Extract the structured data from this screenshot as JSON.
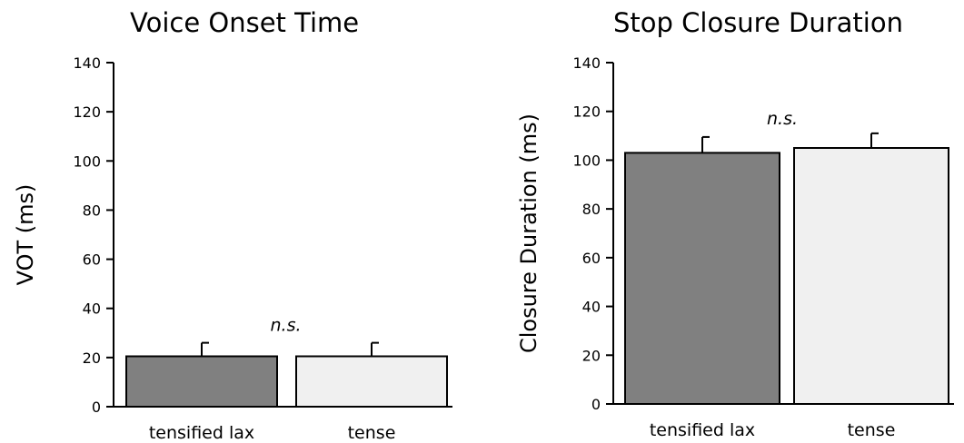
{
  "chart_data": [
    {
      "type": "bar",
      "title": "Voice Onset Time",
      "xlabel": "",
      "ylabel": "VOT (ms)",
      "ylim": [
        0,
        140
      ],
      "yticks": [
        0,
        20,
        40,
        60,
        80,
        100,
        120,
        140
      ],
      "categories": [
        "tensified lax",
        "tense"
      ],
      "values": [
        20.5,
        20.5
      ],
      "error_upper": [
        5.5,
        5.5
      ],
      "bar_colors": [
        "#808080",
        "#f0f0f0"
      ],
      "annotation": "n.s.",
      "annotation_value": 33,
      "grid": false,
      "legend": "none"
    },
    {
      "type": "bar",
      "title": "Stop Closure Duration",
      "xlabel": "",
      "ylabel": "Closure Duration (ms)",
      "ylim": [
        0,
        140
      ],
      "yticks": [
        0,
        20,
        40,
        60,
        80,
        100,
        120,
        140
      ],
      "categories": [
        "tensified lax",
        "tense"
      ],
      "values": [
        103,
        105
      ],
      "error_upper": [
        6.5,
        6
      ],
      "bar_colors": [
        "#808080",
        "#f0f0f0"
      ],
      "annotation": "n.s.",
      "annotation_value": 117,
      "grid": false,
      "legend": "none"
    }
  ]
}
